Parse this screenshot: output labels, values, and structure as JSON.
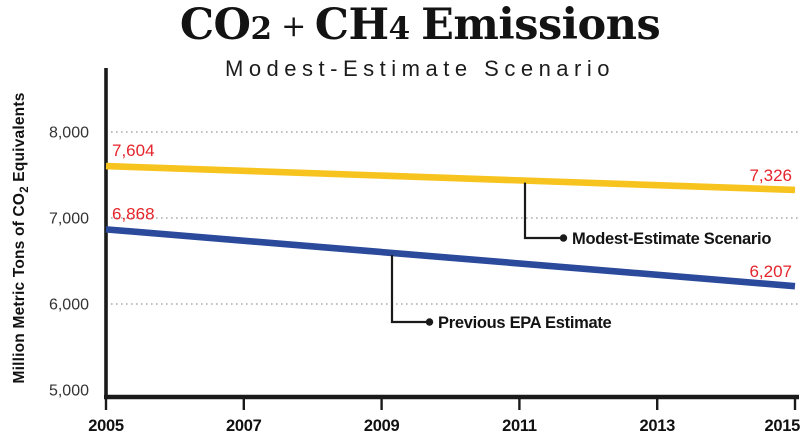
{
  "chart_data": {
    "type": "line",
    "title": "CO2 + CH4 Emissions",
    "title_parts": {
      "t1": "CO",
      "n1": "2",
      "plus": "+",
      "t2": "CH",
      "n2": "4",
      "t3": "Emissions"
    },
    "subtitle": "Modest-Estimate Scenario",
    "ylabel": "Million Metric Tons of CO2 Equivalents",
    "ylabel_parts": {
      "pre": "Million Metric Tons of CO",
      "sub": "2",
      "post": " Equivalents"
    },
    "x": [
      2005,
      2015
    ],
    "xlim": [
      2005,
      2015
    ],
    "ylim": [
      5000,
      8000
    ],
    "x_ticks": [
      2005,
      2007,
      2009,
      2011,
      2013,
      2015
    ],
    "x_tick_labels": [
      "2005",
      "2007",
      "2009",
      "2011",
      "2013",
      "2015"
    ],
    "y_ticks": [
      5000,
      6000,
      7000,
      8000
    ],
    "y_tick_labels": [
      "5,000",
      "6,000",
      "7,000",
      "8,000"
    ],
    "grid_y": [
      6000,
      7000,
      8000
    ],
    "grid_style": "dotted",
    "legend": "inline-callouts",
    "label_color": "#E5252C",
    "axis_color": "#1A1A1A",
    "series": [
      {
        "name": "Modest-Estimate Scenario",
        "color": "#F7C41F",
        "values": [
          7604,
          7326
        ],
        "value_labels": [
          "7,604",
          "7,326"
        ]
      },
      {
        "name": "Previous EPA Estimate",
        "color": "#2B4A9B",
        "values": [
          6868,
          6207
        ],
        "value_labels": [
          "6,868",
          "6,207"
        ]
      }
    ]
  }
}
